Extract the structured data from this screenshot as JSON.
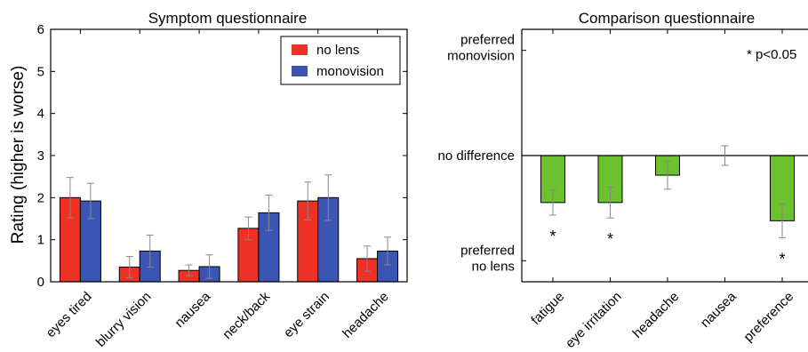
{
  "chart_data": [
    {
      "type": "bar",
      "title": "Symptom questionnaire",
      "xlabel": "",
      "ylabel": "Rating (higher is worse)",
      "ylim": [
        0,
        6
      ],
      "yticks": [
        0,
        1,
        2,
        3,
        4,
        5,
        6
      ],
      "grid": false,
      "legend_position": "top-right",
      "categories": [
        "eyes tired",
        "blurry vision",
        "nausea",
        "neck/back",
        "eye strain",
        "headache"
      ],
      "series": [
        {
          "name": "no lens",
          "color": "#ee3124",
          "values": [
            2.0,
            0.35,
            0.27,
            1.27,
            1.92,
            0.55
          ],
          "error": [
            0.48,
            0.25,
            0.13,
            0.27,
            0.45,
            0.3
          ]
        },
        {
          "name": "monovision",
          "color": "#3b55b4",
          "values": [
            1.92,
            0.73,
            0.36,
            1.64,
            2.0,
            0.73
          ],
          "error": [
            0.42,
            0.38,
            0.28,
            0.42,
            0.54,
            0.33
          ]
        }
      ]
    },
    {
      "type": "bar",
      "title": "Comparison questionnaire",
      "xlabel": "",
      "ylabel": "",
      "ylim": [
        -1.8,
        1.8
      ],
      "grid": false,
      "bar_color": "#6cc12e",
      "y_tick_labels": [
        {
          "value": 1.5,
          "lines": [
            "preferred",
            "monovision"
          ]
        },
        {
          "value": 0,
          "lines": [
            "no difference"
          ]
        },
        {
          "value": -1.5,
          "lines": [
            "preferred",
            "no lens"
          ]
        }
      ],
      "annotation": "* p<0.05",
      "categories": [
        "fatigue",
        "eye irritation",
        "headache",
        "nausea",
        "preference"
      ],
      "values": [
        -0.67,
        -0.67,
        -0.28,
        0.0,
        -0.93
      ],
      "error": [
        0.18,
        0.22,
        0.2,
        0.14,
        0.24
      ],
      "significant": [
        "*",
        "*",
        "",
        "",
        "*"
      ]
    }
  ]
}
